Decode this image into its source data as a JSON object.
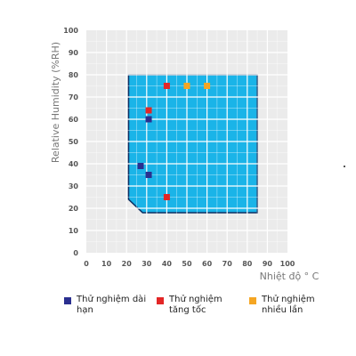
{
  "chart_data": {
    "type": "scatter",
    "xlabel": "Nhiệt độ ° C",
    "ylabel": "Relative Humidity (%RH)",
    "xlim": [
      0,
      100
    ],
    "ylim": [
      0,
      100
    ],
    "x_ticks": [
      "0",
      "10",
      "20",
      "30",
      "40",
      "50",
      "60",
      "70",
      "80",
      "90",
      "100"
    ],
    "y_ticks": [
      "0",
      "10",
      "20",
      "30",
      "40",
      "50",
      "60",
      "70",
      "80",
      "90",
      "100"
    ],
    "grid": true,
    "region": {
      "color": "#1ab4e8",
      "outline": [
        [
          21,
          80
        ],
        [
          85,
          80
        ],
        [
          85,
          18
        ],
        [
          28,
          18
        ],
        [
          21,
          24
        ]
      ]
    },
    "series": [
      {
        "name": "Thử nghiệm dài hạn",
        "color": "#2a2f8f",
        "points": [
          [
            31,
            60
          ],
          [
            27,
            39
          ],
          [
            31,
            35
          ]
        ]
      },
      {
        "name": "Thử nghiệm tăng tốc",
        "color": "#e32626",
        "points": [
          [
            40,
            75
          ],
          [
            31,
            64
          ],
          [
            40,
            25
          ]
        ]
      },
      {
        "name": "Thử nghiệm nhiều lần",
        "color": "#f5a623",
        "points": [
          [
            50,
            75
          ],
          [
            60,
            75
          ]
        ]
      }
    ]
  },
  "legend": [
    {
      "label": "Thử nghiệm dài hạn",
      "color": "#2a2f8f"
    },
    {
      "label": "Thử nghiệm tăng tốc",
      "color": "#e32626"
    },
    {
      "label": "Thử nghiệm nhiều lần",
      "color": "#f5a623"
    }
  ]
}
